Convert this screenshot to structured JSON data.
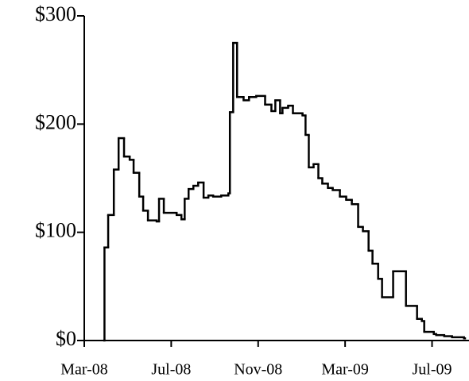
{
  "chart_data": {
    "type": "step",
    "x": [
      0.92,
      0.93,
      1.1,
      1.36,
      1.58,
      1.83,
      2.09,
      2.27,
      2.53,
      2.71,
      2.93,
      3.33,
      3.44,
      3.66,
      4.25,
      4.47,
      4.62,
      4.8,
      5.02,
      5.24,
      5.49,
      5.71,
      5.93,
      6.3,
      6.63,
      6.7,
      6.85,
      7.03,
      7.33,
      7.58,
      7.91,
      8.32,
      8.61,
      8.79,
      9.01,
      9.12,
      9.38,
      9.6,
      10.04,
      10.18,
      10.33,
      10.55,
      10.77,
      10.95,
      11.21,
      11.43,
      11.76,
      12.05,
      12.31,
      12.6,
      12.82,
      13.08,
      13.26,
      13.52,
      13.7,
      14.21,
      14.8,
      15.31,
      15.53,
      15.64,
      16.08,
      16.19,
      16.56,
      16.92,
      17.47
    ],
    "values": [
      0,
      86,
      116,
      158,
      187,
      170,
      167,
      155,
      133,
      120,
      111,
      110,
      131,
      118,
      116,
      112,
      131,
      140,
      143,
      146,
      132,
      134,
      133,
      134,
      136,
      211,
      275,
      225,
      222,
      225,
      226,
      218,
      212,
      222,
      210,
      215,
      217,
      210,
      208,
      190,
      160,
      163,
      150,
      145,
      141,
      139,
      133,
      130,
      126,
      105,
      101,
      83,
      71,
      57,
      40,
      64,
      32,
      20,
      18,
      8,
      6,
      5,
      4,
      3,
      2
    ],
    "color": "#000000",
    "xlim": [
      0,
      17.7
    ],
    "xticks": [
      {
        "value": 0,
        "label": "Mar-08"
      },
      {
        "value": 4,
        "label": "Jul-08"
      },
      {
        "value": 8,
        "label": "Nov-08"
      },
      {
        "value": 12,
        "label": "Mar-09"
      },
      {
        "value": 16,
        "label": "Jul-09"
      }
    ],
    "ylim": [
      0,
      300
    ],
    "yticks": [
      {
        "value": 0,
        "label": "$0"
      },
      {
        "value": 100,
        "label": "$100"
      },
      {
        "value": 200,
        "label": "$200"
      },
      {
        "value": 300,
        "label": "$300"
      }
    ]
  }
}
